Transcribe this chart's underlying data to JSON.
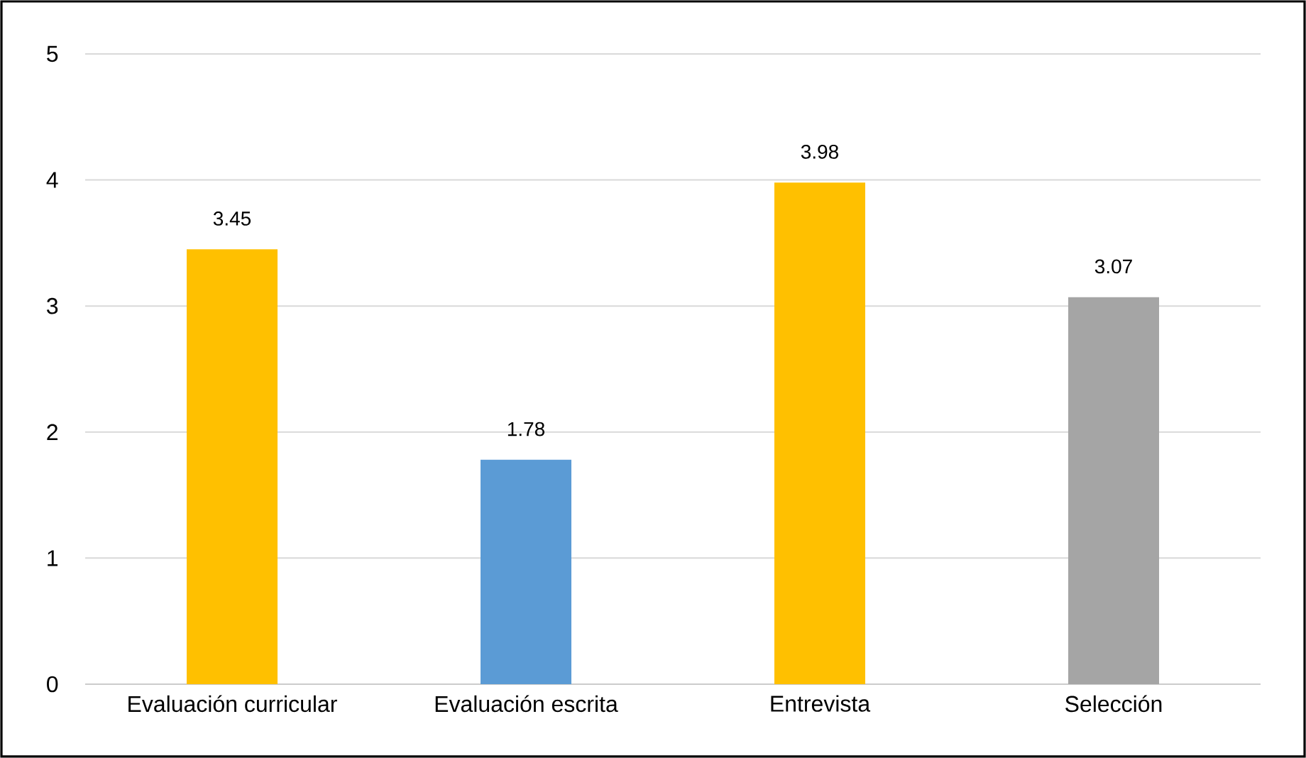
{
  "chart_data": {
    "type": "bar",
    "categories": [
      "Evaluación curricular",
      "Evaluación escrita",
      "Entrevista",
      "Selección"
    ],
    "values": [
      3.45,
      1.78,
      3.98,
      3.07
    ],
    "colors": [
      "#ffc000",
      "#5b9bd5",
      "#ffc000",
      "#a5a5a5"
    ],
    "ylim": [
      0,
      5
    ],
    "yticks": [
      0,
      1,
      2,
      3,
      4,
      5
    ],
    "grid": "y",
    "data_labels": true
  }
}
